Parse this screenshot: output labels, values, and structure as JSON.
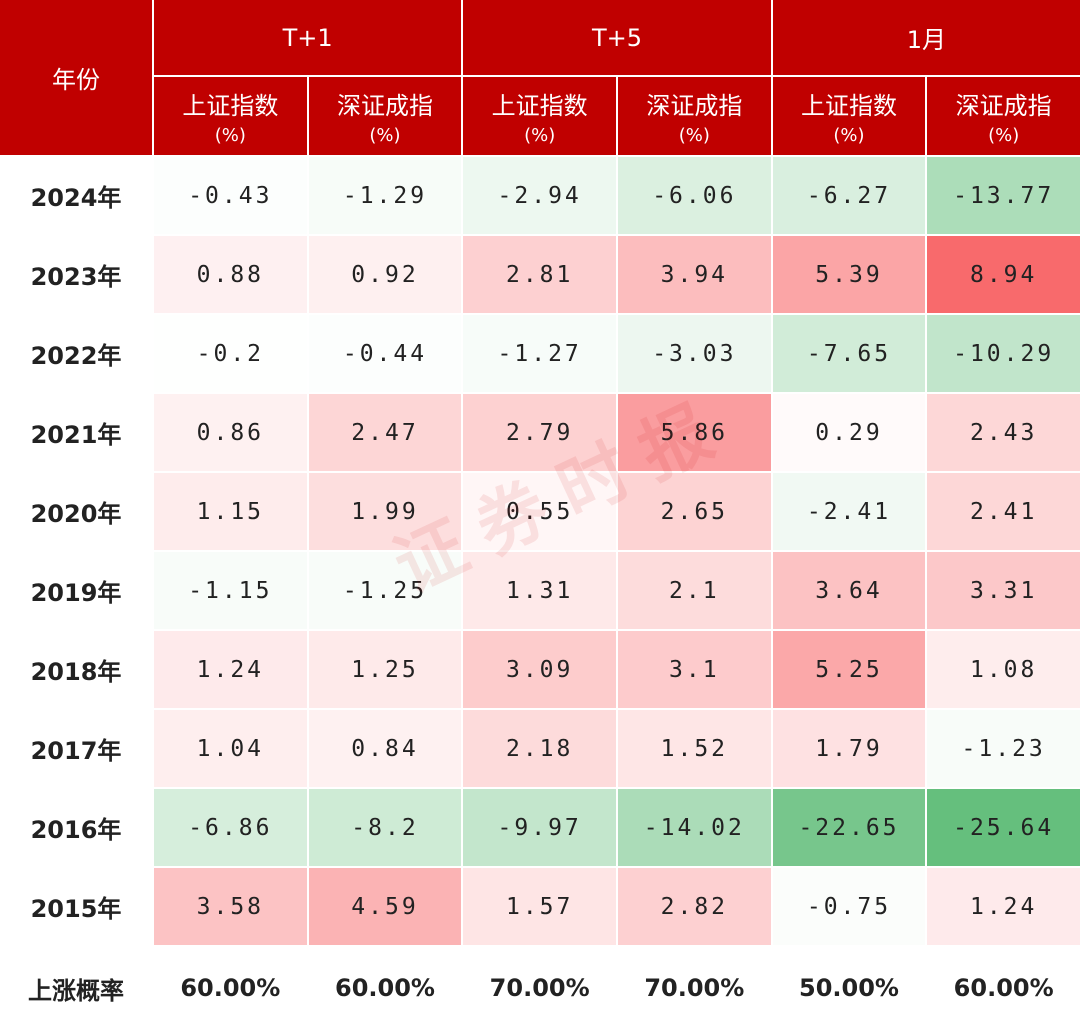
{
  "header": {
    "year": "年份",
    "groups": [
      {
        "label": "T+1",
        "columns": [
          {
            "name": "上证指数",
            "unit": "(%)"
          },
          {
            "name": "深证成指",
            "unit": "(%)"
          }
        ]
      },
      {
        "label": "T+5",
        "columns": [
          {
            "name": "上证指数",
            "unit": "(%)"
          },
          {
            "name": "深证成指",
            "unit": "(%)"
          }
        ]
      },
      {
        "label": "1月",
        "columns": [
          {
            "name": "上证指数",
            "unit": "(%)"
          },
          {
            "name": "深证成指",
            "unit": "(%)"
          }
        ]
      }
    ]
  },
  "rows": [
    {
      "year": "2024年",
      "values": [
        -0.43,
        -1.29,
        -2.94,
        -6.06,
        -6.27,
        -13.77
      ]
    },
    {
      "year": "2023年",
      "values": [
        0.88,
        0.92,
        2.81,
        3.94,
        5.39,
        8.94
      ]
    },
    {
      "year": "2022年",
      "values": [
        -0.2,
        -0.44,
        -1.27,
        -3.03,
        -7.65,
        -10.29
      ]
    },
    {
      "year": "2021年",
      "values": [
        0.86,
        2.47,
        2.79,
        5.86,
        0.29,
        2.43
      ]
    },
    {
      "year": "2020年",
      "values": [
        1.15,
        1.99,
        0.55,
        2.65,
        -2.41,
        2.41
      ]
    },
    {
      "year": "2019年",
      "values": [
        -1.15,
        -1.25,
        1.31,
        2.1,
        3.64,
        3.31
      ]
    },
    {
      "year": "2018年",
      "values": [
        1.24,
        1.25,
        3.09,
        3.1,
        5.25,
        1.08
      ]
    },
    {
      "year": "2017年",
      "values": [
        1.04,
        0.84,
        2.18,
        1.52,
        1.79,
        -1.23
      ]
    },
    {
      "year": "2016年",
      "values": [
        -6.86,
        -8.2,
        -9.97,
        -14.02,
        -22.65,
        -25.64
      ]
    },
    {
      "year": "2015年",
      "values": [
        3.58,
        4.59,
        1.57,
        2.82,
        -0.75,
        1.24
      ]
    }
  ],
  "footer": {
    "label": "上涨概率",
    "values": [
      "60.00%",
      "60.00%",
      "70.00%",
      "70.00%",
      "50.00%",
      "60.00%"
    ]
  },
  "watermark": "证券时报"
}
